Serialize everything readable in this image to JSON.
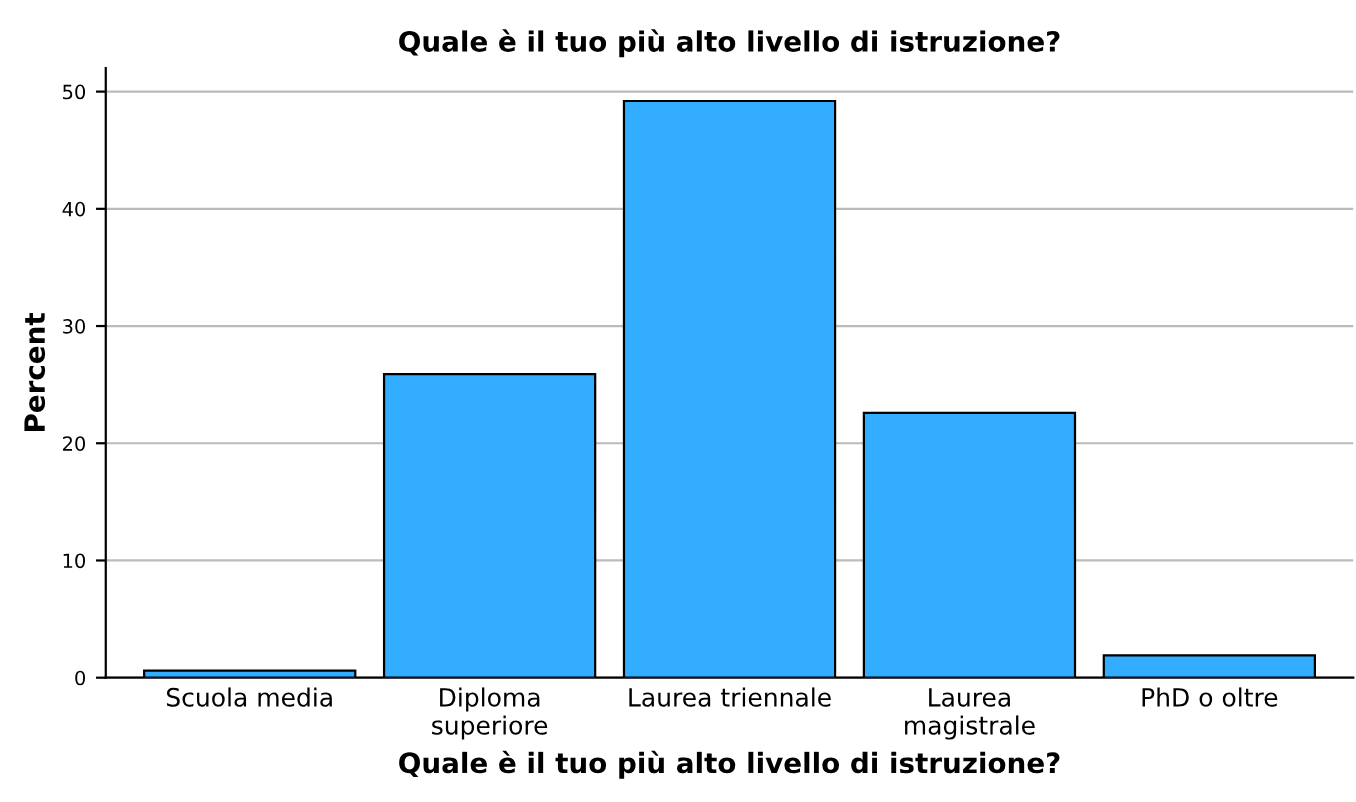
{
  "chart_data": {
    "type": "bar",
    "title": "Quale è il tuo più alto livello di istruzione?",
    "xlabel": "Quale è il tuo più alto livello di istruzione?",
    "ylabel": "Percent",
    "categories": [
      "Scuola media",
      "Diploma\nsuperiore",
      "Laurea triennale",
      "Laurea\nmagistrale",
      "PhD o oltre"
    ],
    "values": [
      0.6,
      25.9,
      49.2,
      22.6,
      1.9
    ],
    "color": "#33adff",
    "ylim": [
      0,
      52
    ],
    "yticks": [
      0,
      10,
      20,
      30,
      40,
      50
    ],
    "grid": "y",
    "legend": false
  }
}
